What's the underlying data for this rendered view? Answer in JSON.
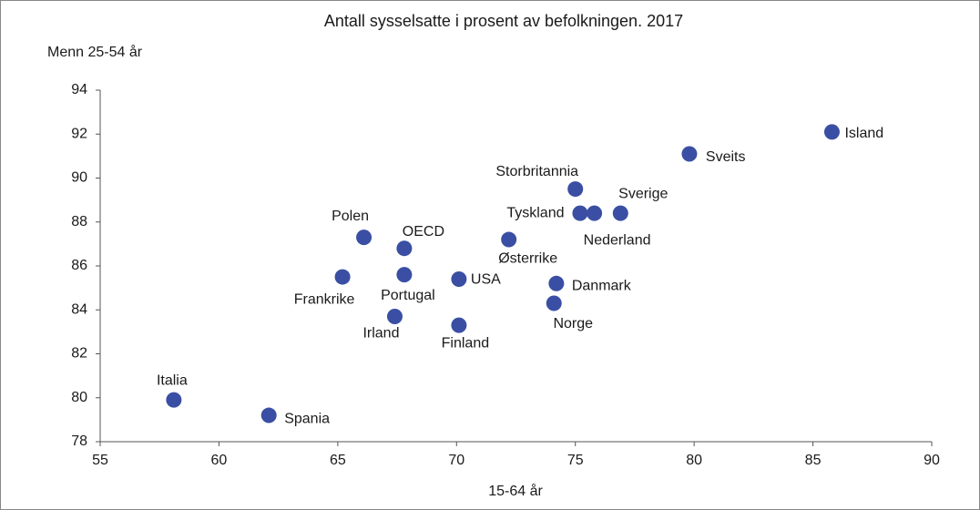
{
  "chart_data": {
    "type": "scatter",
    "title": "Antall sysselsatte i prosent av befolkningen. 2017",
    "y_label": "Menn 25-54 år",
    "x_label": "15-64 år",
    "labels": [
      "Island",
      "Sveits",
      "Storbritannia",
      "Tyskland",
      "Nederland",
      "Sverige",
      "Østerrike",
      "Polen",
      "OECD",
      "Frankrike",
      "Portugal",
      "USA",
      "Danmark",
      "Norge",
      "Irland",
      "Finland",
      "Italia",
      "Spania"
    ],
    "x": [
      85.8,
      79.8,
      75.0,
      75.2,
      75.8,
      76.9,
      72.2,
      66.1,
      67.8,
      65.2,
      67.8,
      70.1,
      74.2,
      74.1,
      67.4,
      70.1,
      58.1,
      62.1
    ],
    "y": [
      92.1,
      91.1,
      89.5,
      88.4,
      88.4,
      88.4,
      87.2,
      87.3,
      86.8,
      85.5,
      85.6,
      85.4,
      85.2,
      84.3,
      83.7,
      83.3,
      79.9,
      79.2
    ],
    "color": "#3a4fa3",
    "xlim": [
      55,
      90
    ],
    "xticks": [
      55,
      60,
      65,
      70,
      75,
      80,
      85,
      90
    ],
    "ylim": [
      78,
      94
    ],
    "yticks": [
      78,
      80,
      82,
      84,
      86,
      88,
      90,
      92,
      94
    ]
  }
}
